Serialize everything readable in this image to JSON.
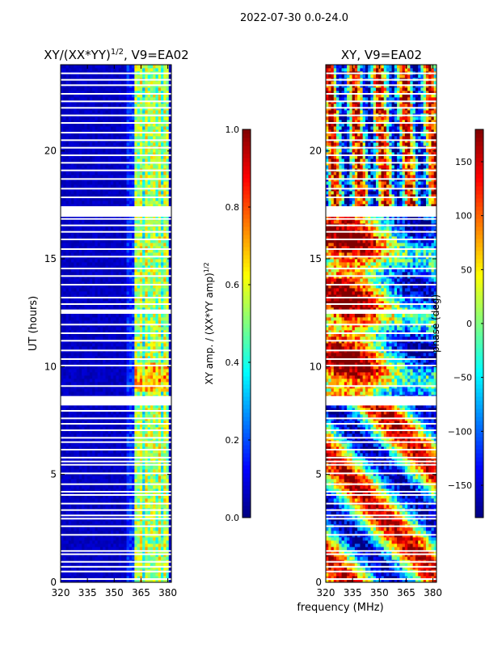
{
  "suptitle": "2022-07-30 0.0-24.0",
  "xlabel_shared": "frequency (MHz)",
  "chart_data": [
    {
      "type": "heatmap",
      "title": "XY/(XX*YY)^1/2, V9=EA02",
      "title_main": "XY/(XX*YY)",
      "title_sup": "1/2",
      "title_tail": ", V9=EA02",
      "xlabel": "frequency (MHz)",
      "ylabel": "UT (hours)",
      "xlim": [
        320,
        382
      ],
      "ylim": [
        0,
        24
      ],
      "xticks": [
        320,
        335,
        350,
        365,
        380
      ],
      "yticks": [
        0,
        5,
        10,
        15,
        20
      ],
      "colorbar": {
        "label": "XY amp. / (XX*YY amp)^1/2",
        "label_main": "XY amp. / (XX*YY amp)",
        "label_sup": "1/2",
        "range": [
          0.0,
          1.0
        ],
        "ticks": [
          "0.0",
          "0.2",
          "0.4",
          "0.6",
          "0.8",
          "1.0"
        ],
        "colormap": "jet"
      },
      "description_of_values": "mostly ~0.05 (dark blue); elevated 0.3-0.7 in band 360-380 MHz"
    },
    {
      "type": "heatmap",
      "title": "XY, V9=EA02",
      "xlabel": "frequency (MHz)",
      "ylabel": "",
      "xlim": [
        320,
        382
      ],
      "ylim": [
        0,
        24
      ],
      "xticks": [
        320,
        335,
        350,
        365,
        380
      ],
      "yticks": [
        0,
        5,
        10,
        15,
        20
      ],
      "colorbar": {
        "label": "phase (deg)",
        "range": [
          -180,
          180
        ],
        "ticks": [
          "150",
          "100",
          "50",
          "0",
          "−50",
          "−100",
          "−150"
        ],
        "tick_values": [
          150,
          100,
          50,
          0,
          -50,
          -100,
          -150
        ],
        "colormap": "jet"
      }
    }
  ],
  "flagged_hours": [
    0.15,
    0.5,
    0.72,
    0.95,
    1.3,
    1.45,
    2.2,
    2.6,
    2.95,
    3.1,
    3.35,
    3.65,
    4.05,
    4.2,
    4.55,
    5.05,
    5.45,
    5.6,
    5.78,
    6.15,
    6.5,
    6.7,
    7.05,
    7.35,
    7.6,
    7.95,
    8.25,
    8.45,
    8.6,
    9.1,
    10.05,
    10.35,
    10.75,
    11.2,
    11.55,
    11.95,
    12.5,
    12.9,
    13.2,
    13.8,
    14.2,
    14.55,
    15.1,
    15.45,
    15.9,
    16.25,
    16.55,
    16.85,
    17.15,
    17.4,
    17.85,
    18.25,
    18.7,
    19.1,
    19.45,
    19.8,
    20.15,
    20.5,
    20.85,
    21.3,
    21.65,
    22.0,
    22.3,
    22.65,
    23.05,
    23.3,
    23.6
  ],
  "flagged_blocks": [
    [
      8.2,
      8.6
    ],
    [
      17.0,
      17.35
    ],
    [
      12.45,
      12.65
    ]
  ]
}
